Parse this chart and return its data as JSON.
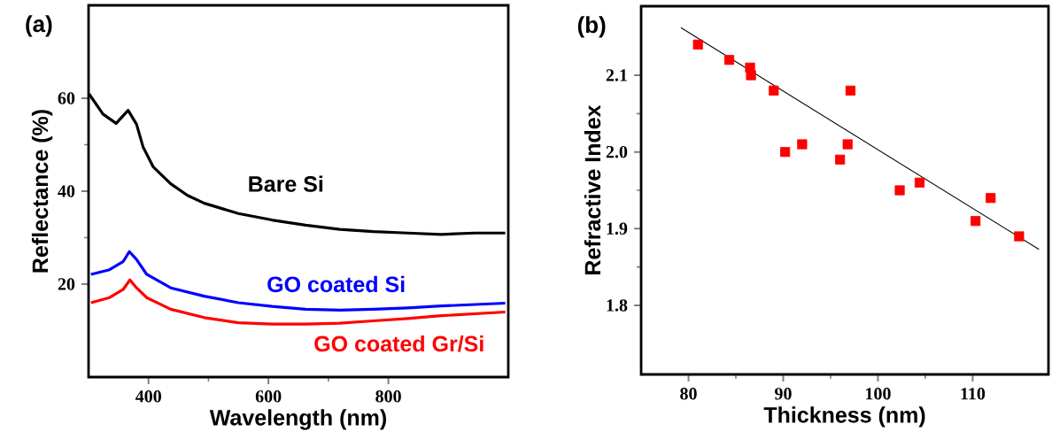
{
  "chart_data": [
    {
      "type": "line",
      "title": "(a)",
      "xlabel": "Wavelength (nm)",
      "ylabel": "Reflectance (%)",
      "xlim": [
        300,
        1000
      ],
      "ylim": [
        0,
        80
      ],
      "xticks": [
        400,
        600,
        800
      ],
      "yticks": [
        20,
        40,
        60
      ],
      "series": [
        {
          "name": "Bare Si",
          "color": "#000000",
          "x": [
            301,
            324,
            346,
            366,
            380,
            391,
            408,
            437,
            465,
            493,
            550,
            606,
            662,
            719,
            775,
            832,
            888,
            944,
            995
          ],
          "values": [
            60.9,
            56.6,
            54.6,
            57.4,
            54.4,
            49.5,
            45.2,
            41.6,
            39.1,
            37.4,
            35.2,
            33.8,
            32.7,
            31.8,
            31.3,
            31.0,
            30.7,
            31.0,
            31.0
          ]
        },
        {
          "name": "GO coated Si",
          "color": "#0000ff",
          "x": [
            304,
            335,
            358,
            368,
            380,
            397,
            437,
            493,
            550,
            606,
            662,
            719,
            775,
            832,
            888,
            995
          ],
          "values": [
            22.1,
            23.1,
            24.9,
            27.0,
            25.3,
            22.1,
            19.2,
            17.4,
            16.0,
            15.2,
            14.6,
            14.4,
            14.6,
            14.9,
            15.3,
            15.9
          ]
        },
        {
          "name": "GO coated Gr/Si",
          "color": "#ff0000",
          "x": [
            304,
            335,
            358,
            369,
            380,
            397,
            437,
            493,
            550,
            606,
            662,
            719,
            775,
            832,
            888,
            995
          ],
          "values": [
            16.0,
            17.1,
            18.9,
            20.9,
            19.2,
            17.1,
            14.6,
            12.8,
            11.7,
            11.4,
            11.4,
            11.6,
            12.1,
            12.6,
            13.2,
            14.0
          ]
        }
      ]
    },
    {
      "type": "scatter",
      "title": "(b)",
      "xlabel": "Thickness (nm)",
      "ylabel": "Refractive Index",
      "xlim": [
        75,
        118
      ],
      "ylim": [
        1.71,
        2.19
      ],
      "xticks": [
        80,
        90,
        100,
        110
      ],
      "yticks": [
        1.8,
        1.9,
        {
          "value": 2.0,
          "label": "2.0"
        },
        2.1
      ],
      "series": [
        {
          "color": "#ff0000",
          "marker": "square",
          "x": [
            81.0,
            84.3,
            86.5,
            86.6,
            89.0,
            90.2,
            92.0,
            96.0,
            96.8,
            97.1,
            102.3,
            104.4,
            110.3,
            111.9,
            114.9
          ],
          "values": [
            2.14,
            2.12,
            2.11,
            2.1,
            2.08,
            2.0,
            2.01,
            1.99,
            2.01,
            2.08,
            1.95,
            1.96,
            1.91,
            1.94,
            1.89
          ]
        },
        {
          "type": "line",
          "color": "#000000",
          "x": [
            79.2,
            117.0
          ],
          "values": [
            2.162,
            1.873
          ]
        }
      ]
    }
  ]
}
